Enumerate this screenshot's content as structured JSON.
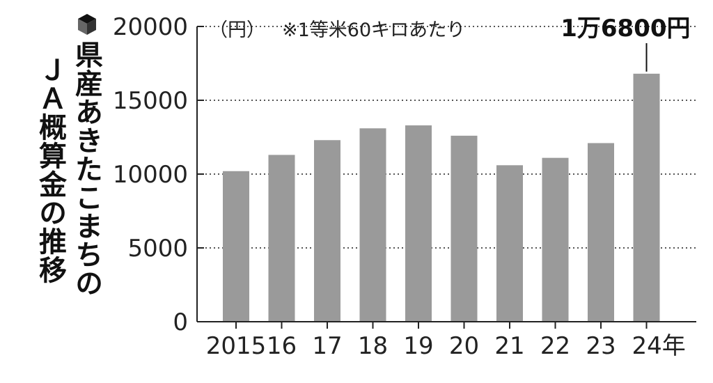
{
  "title": {
    "line1": "県産あきたこまちの",
    "line2": "ＪＡ概算金の推移"
  },
  "chart_data": {
    "type": "bar",
    "unit_label": "（円）",
    "note": "※1等米60キロあたり",
    "categories": [
      "2015",
      "16",
      "17",
      "18",
      "19",
      "20",
      "21",
      "22",
      "23",
      "24年"
    ],
    "values": [
      10200,
      11300,
      12300,
      13100,
      13300,
      12600,
      10600,
      11100,
      12100,
      16800
    ],
    "ylim": [
      0,
      20000
    ],
    "yticks": [
      0,
      5000,
      10000,
      15000,
      20000
    ],
    "grid": "dotted-horizontal",
    "bar_color": "#9a9a9a",
    "annotation": {
      "category": "24年",
      "text": "1万6800円"
    }
  }
}
